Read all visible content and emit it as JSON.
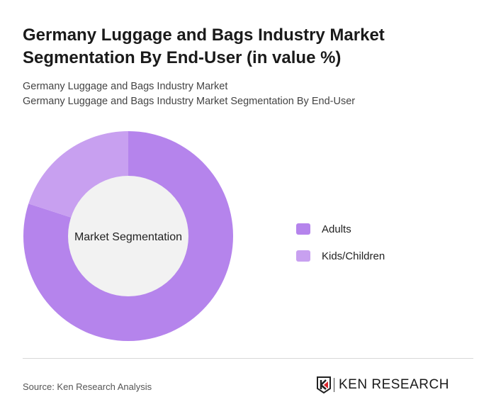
{
  "header": {
    "title": "Germany Luggage and Bags Industry Market Segmentation By End-User (in value %)",
    "subtitle1": "Germany Luggage and Bags Industry Market",
    "subtitle2": "Germany Luggage and Bags Industry Market Segmentation By End-User"
  },
  "chart_data": {
    "type": "pie",
    "donut": true,
    "center_label": "Market Segmentation",
    "categories": [
      "Adults",
      "Kids/Children"
    ],
    "values": [
      80,
      20
    ],
    "colors": [
      "#b584ec",
      "#c8a0f0"
    ],
    "legend_placement": "right"
  },
  "footer": {
    "source": "Source: Ken Research Analysis",
    "logo_text": "KEN RESEARCH"
  }
}
